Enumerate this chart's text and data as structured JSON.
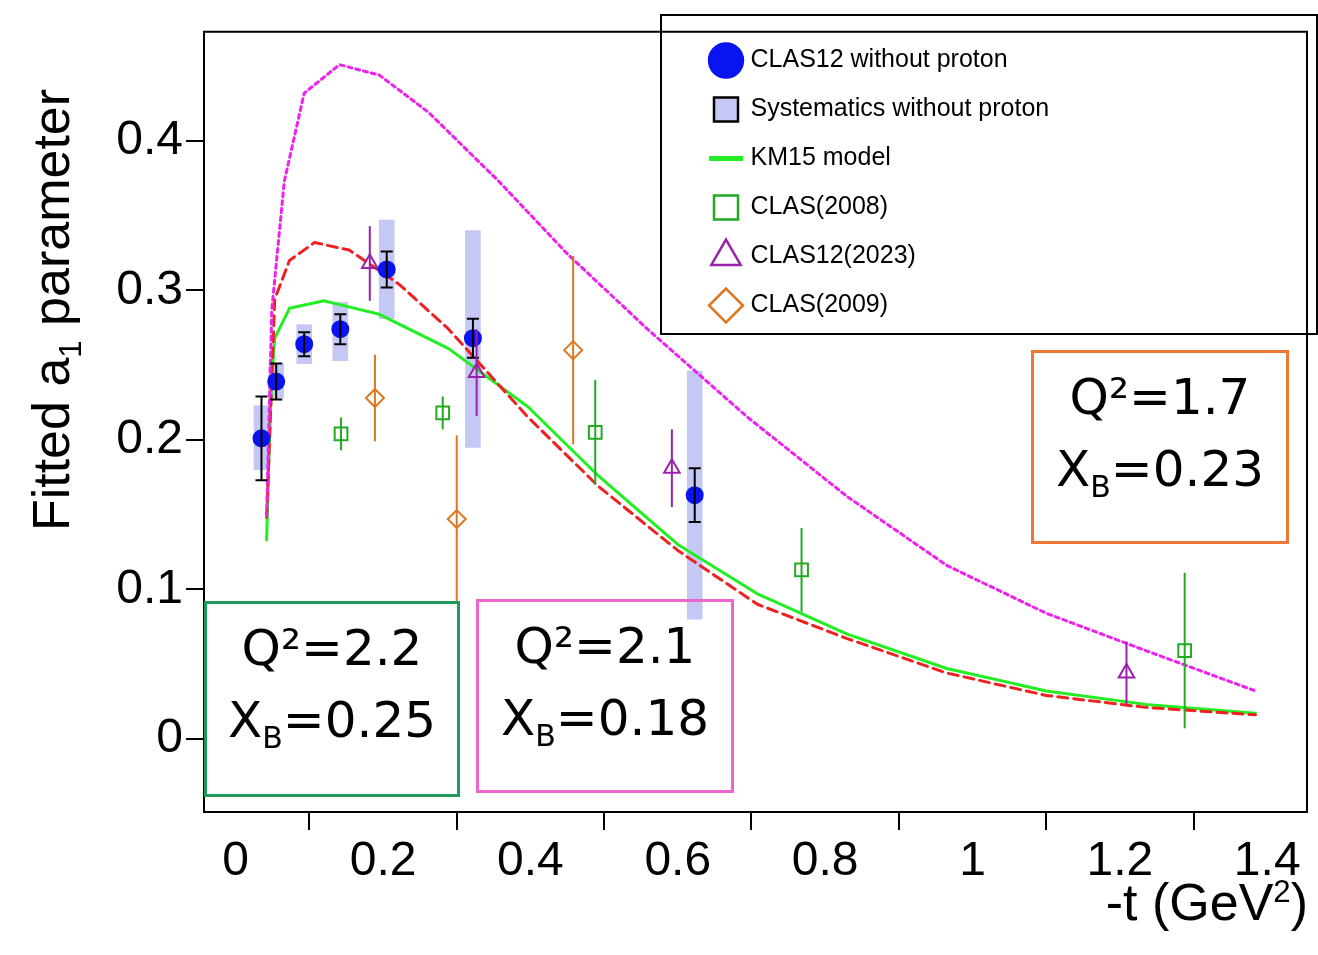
{
  "chart_data": {
    "type": "scatter",
    "xlabel": "-t (GeV$^{2}$)",
    "ylabel": "Fitted a$_{1}$ parameter",
    "xlim": [
      -0.043,
      1.454
    ],
    "ylim": [
      -0.049,
      0.473
    ],
    "xticks": [
      0,
      0.2,
      0.4,
      0.6,
      0.8,
      1,
      1.2,
      1.4
    ],
    "yticks": [
      0,
      0.1,
      0.2,
      0.3,
      0.4
    ],
    "grid": false,
    "legend": "top right",
    "annotations": [
      "Q²=2.2\nX$_{B}$=0.25",
      "Q²=2.1\nX$_{B}$=0.18",
      "Q²=1.7\nX$_{B}$=0.23"
    ],
    "series": [
      {
        "name": "CLAS12 without proton",
        "marker": "circle",
        "color": "#0a14f0",
        "x": [
          0.035,
          0.055,
          0.093,
          0.142,
          0.205,
          0.322,
          0.623
        ],
        "values": [
          0.201,
          0.239,
          0.264,
          0.274,
          0.314,
          0.268,
          0.163
        ],
        "errors": [
          0.028,
          0.012,
          0.008,
          0.01,
          0.012,
          0.013,
          0.018
        ]
      },
      {
        "name": "Systematics without proton",
        "type": "bar",
        "color": "#c5c8f5",
        "x": [
          0.035,
          0.055,
          0.093,
          0.142,
          0.205,
          0.322,
          0.623
        ],
        "base": [
          0.18,
          0.228,
          0.251,
          0.253,
          0.281,
          0.195,
          0.08
        ],
        "values": [
          0.043,
          0.023,
          0.026,
          0.039,
          0.066,
          0.145,
          0.166
        ]
      },
      {
        "name": "KM15 model",
        "type": "line",
        "line_style": "solid",
        "color": "#22ee22",
        "x": [
          0.042,
          0.046,
          0.049,
          0.053,
          0.073,
          0.12,
          0.195,
          0.289,
          0.397,
          0.492,
          0.6,
          0.708,
          0.83,
          0.965,
          1.1,
          1.235,
          1.384
        ],
        "values": [
          0.133,
          0.202,
          0.241,
          0.268,
          0.288,
          0.293,
          0.284,
          0.261,
          0.222,
          0.176,
          0.13,
          0.097,
          0.07,
          0.047,
          0.032,
          0.023,
          0.017
        ]
      },
      {
        "type": "line",
        "line_style": "dashed",
        "color": "#ee2222",
        "x": [
          0.042,
          0.053,
          0.073,
          0.107,
          0.154,
          0.222,
          0.289,
          0.397,
          0.492,
          0.6,
          0.708,
          0.83,
          0.965,
          1.1,
          1.235,
          1.384
        ],
        "values": [
          0.148,
          0.294,
          0.32,
          0.332,
          0.327,
          0.304,
          0.274,
          0.215,
          0.169,
          0.126,
          0.09,
          0.067,
          0.044,
          0.029,
          0.021,
          0.016
        ]
      },
      {
        "type": "line",
        "line_style": "dotted",
        "color": "#ee22ee",
        "x": [
          0.042,
          0.049,
          0.066,
          0.093,
          0.141,
          0.195,
          0.262,
          0.357,
          0.451,
          0.559,
          0.695,
          0.83,
          0.965,
          1.1,
          1.235,
          1.384
        ],
        "values": [
          0.149,
          0.287,
          0.373,
          0.432,
          0.451,
          0.444,
          0.419,
          0.373,
          0.324,
          0.274,
          0.215,
          0.162,
          0.116,
          0.084,
          0.059,
          0.032
        ]
      },
      {
        "name": "CLAS(2008)",
        "marker": "square",
        "color": "#22aa22",
        "x": [
          0.143,
          0.281,
          0.488,
          0.768,
          1.288
        ],
        "values": [
          0.204,
          0.218,
          0.205,
          0.113,
          0.059
        ],
        "errors": [
          0.011,
          0.011,
          0.035,
          0.028,
          0.052
        ]
      },
      {
        "name": "CLAS12(2023)",
        "marker": "triangle",
        "color": "#9922aa",
        "x": [
          0.182,
          0.327,
          0.592,
          1.209
        ],
        "values": [
          0.318,
          0.245,
          0.181,
          0.044
        ],
        "errors": [
          0.025,
          0.029,
          0.026,
          0.021
        ]
      },
      {
        "name": "CLAS(2009)",
        "marker": "diamond",
        "color": "#dd7722",
        "x": [
          0.189,
          0.3,
          0.458
        ],
        "values": [
          0.228,
          0.147,
          0.26
        ],
        "errors": [
          0.029,
          0.056,
          0.063
        ]
      }
    ]
  }
}
